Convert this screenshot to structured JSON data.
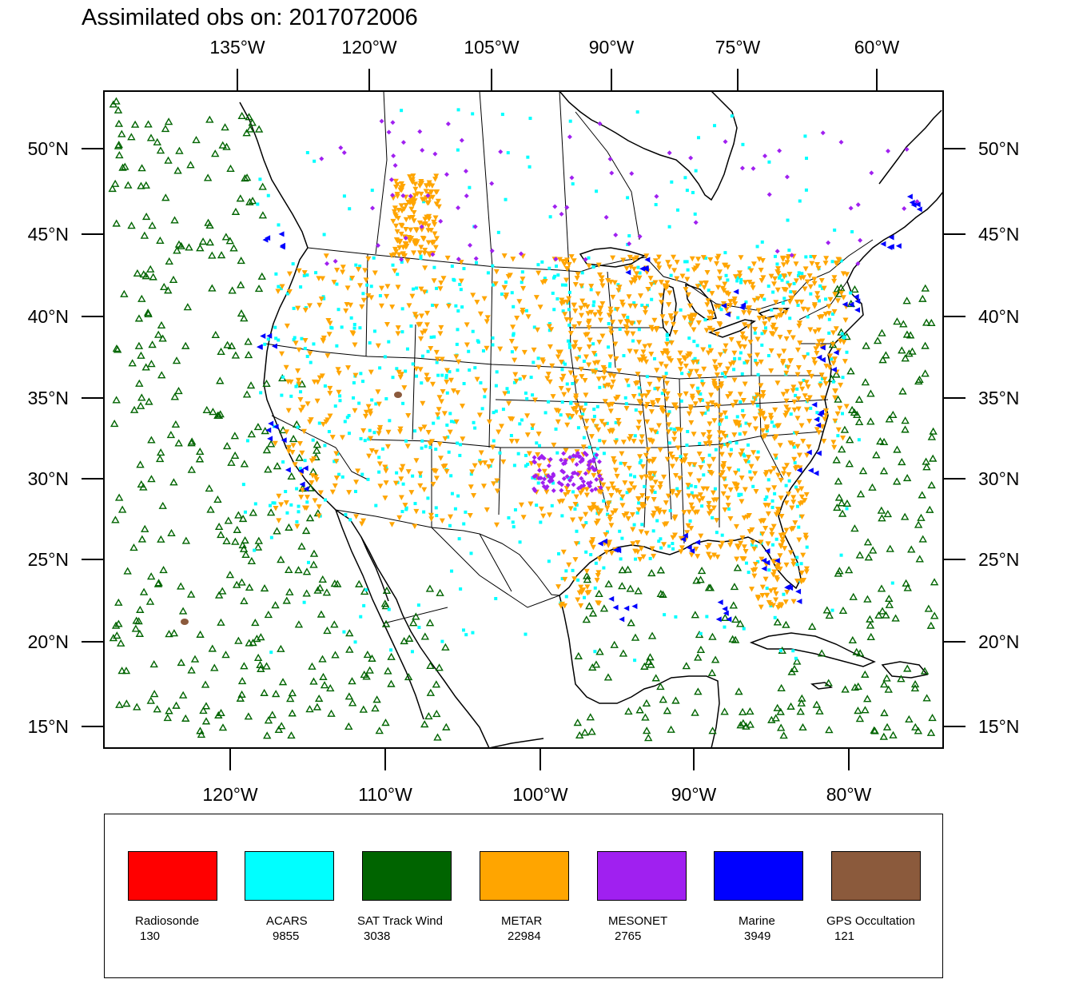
{
  "title": "Assimilated obs on: 2017072006",
  "map": {
    "top_lon_labels": [
      "135°W",
      "120°W",
      "105°W",
      "90°W",
      "75°W",
      "60°W"
    ],
    "bottom_lon_labels": [
      "120°W",
      "110°W",
      "100°W",
      "90°W",
      "80°W"
    ],
    "lat_labels": [
      "50°N",
      "45°N",
      "40°N",
      "35°N",
      "30°N",
      "25°N",
      "20°N",
      "15°N"
    ],
    "extent": {
      "lon_min": -128,
      "lon_max": -74,
      "lat_min": 13.5,
      "lat_max": 53.5
    }
  },
  "legend": [
    {
      "name": "Radiosonde",
      "count": "130",
      "color": "#ff0000"
    },
    {
      "name": "ACARS",
      "count": "9855",
      "color": "#00ffff"
    },
    {
      "name": "SAT Track Wind",
      "count": "3038",
      "color": "#006400"
    },
    {
      "name": "METAR",
      "count": "22984",
      "color": "#ffa500"
    },
    {
      "name": "MESONET",
      "count": "2765",
      "color": "#a020f0"
    },
    {
      "name": "Marine",
      "count": "3949",
      "color": "#0000ff"
    },
    {
      "name": "GPS Occultation",
      "count": "121",
      "color": "#8b5a3c"
    }
  ],
  "symbols": {
    "sat_track_wind": "triangle-up",
    "metar": "triangle-down",
    "acars": "square",
    "mesonet": "diamond",
    "marine": "triangle-left"
  }
}
